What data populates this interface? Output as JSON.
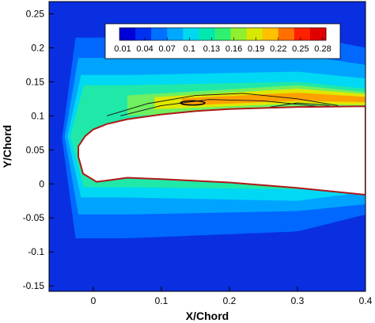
{
  "chart_data": {
    "type": "heatmap",
    "title": "",
    "xlabel": "X/Chord",
    "ylabel": "Y/Chord",
    "xlim": [
      -0.065,
      0.4
    ],
    "ylim": [
      -0.158,
      0.268
    ],
    "x_ticks": [
      {
        "value": 0,
        "label": "0"
      },
      {
        "value": 0.1,
        "label": "0.1"
      },
      {
        "value": 0.2,
        "label": "0.2"
      },
      {
        "value": 0.3,
        "label": "0.3"
      },
      {
        "value": 0.4,
        "label": "0.4"
      }
    ],
    "y_ticks": [
      {
        "value": 0.25,
        "label": "0.25"
      },
      {
        "value": 0.2,
        "label": "0.2"
      },
      {
        "value": 0.15,
        "label": "0.15"
      },
      {
        "value": 0.1,
        "label": "0.1"
      },
      {
        "value": 0.05,
        "label": "0.05"
      },
      {
        "value": 0,
        "label": "0"
      },
      {
        "value": -0.05,
        "label": "-0.05"
      },
      {
        "value": -0.1,
        "label": "-0.1"
      },
      {
        "value": -0.15,
        "label": "-0.15"
      }
    ],
    "grid": false,
    "legend": "colorbar top-center inside plot",
    "colorbar": {
      "min": 0.01,
      "max": 0.28,
      "levels": [
        0.01,
        0.04,
        0.07,
        0.1,
        0.13,
        0.16,
        0.19,
        0.22,
        0.25,
        0.28
      ],
      "labels": [
        "0.01",
        "0.04",
        "0.07",
        "0.1",
        "0.13",
        "0.16",
        "0.19",
        "0.22",
        "0.25",
        "0.28"
      ],
      "colors": [
        "#0000d8",
        "#0030f0",
        "#0070ff",
        "#00a8ff",
        "#00d8f0",
        "#00e8b0",
        "#30f070",
        "#90f030",
        "#d8e800",
        "#ffc000",
        "#ff7000",
        "#ff2000",
        "#e00000"
      ]
    },
    "field_bands": [
      {
        "level": 0.01,
        "color": "#0a2fe0",
        "y_lower": [
          -0.158,
          -0.158,
          -0.158
        ],
        "y_upper": [
          0.268,
          0.268,
          0.268
        ]
      },
      {
        "level": 0.04,
        "color": "#0068ff",
        "y_lower": [
          -0.08,
          -0.07,
          -0.045
        ],
        "y_upper": [
          0.215,
          0.22,
          0.2
        ]
      },
      {
        "level": 0.07,
        "color": "#00a4ff",
        "y_lower": [
          -0.045,
          -0.04,
          -0.03
        ],
        "y_upper": [
          0.185,
          0.19,
          0.175
        ]
      },
      {
        "level": 0.1,
        "color": "#00d8f4",
        "y_lower": [
          -0.02,
          -0.025,
          -0.012
        ],
        "y_upper": [
          0.16,
          0.165,
          0.155
        ]
      },
      {
        "level": 0.13,
        "color": "#20e8a8",
        "y_lower": [
          -0.005,
          -0.008,
          0.005
        ],
        "y_upper": [
          0.145,
          0.15,
          0.14
        ]
      },
      {
        "level": 0.16,
        "color": "#70f060",
        "y_lower": [
          0.1,
          0.11,
          0.11
        ],
        "y_upper": [
          0.13,
          0.145,
          0.135
        ]
      },
      {
        "level": 0.22,
        "color": "#e0e800",
        "y_lower": [
          0.108,
          0.118,
          0.116
        ],
        "y_upper": [
          0.125,
          0.14,
          0.132
        ]
      },
      {
        "level": 0.25,
        "color": "#ffa000",
        "y_lower": [
          0.112,
          0.122,
          0.12
        ],
        "y_upper": [
          0.122,
          0.134,
          0.128
        ]
      }
    ],
    "field_band_x": [
      0.05,
      0.3,
      0.4
    ],
    "airfoil_upper": [
      {
        "x": -0.022,
        "y": 0.055
      },
      {
        "x": -0.012,
        "y": 0.07
      },
      {
        "x": 0.0,
        "y": 0.08
      },
      {
        "x": 0.02,
        "y": 0.088
      },
      {
        "x": 0.05,
        "y": 0.095
      },
      {
        "x": 0.1,
        "y": 0.102
      },
      {
        "x": 0.15,
        "y": 0.107
      },
      {
        "x": 0.2,
        "y": 0.11
      },
      {
        "x": 0.3,
        "y": 0.113
      },
      {
        "x": 0.4,
        "y": 0.114
      }
    ],
    "airfoil_lower": [
      {
        "x": 0.4,
        "y": -0.016
      },
      {
        "x": 0.3,
        "y": -0.006
      },
      {
        "x": 0.2,
        "y": 0.002
      },
      {
        "x": 0.1,
        "y": 0.007
      },
      {
        "x": 0.05,
        "y": 0.009
      },
      {
        "x": 0.02,
        "y": 0.005
      },
      {
        "x": 0.005,
        "y": 0.003
      },
      {
        "x": -0.015,
        "y": 0.015
      },
      {
        "x": -0.022,
        "y": 0.04
      }
    ],
    "streamlines": [
      [
        {
          "x": 0.02,
          "y": 0.1
        },
        {
          "x": 0.08,
          "y": 0.118
        },
        {
          "x": 0.15,
          "y": 0.13
        },
        {
          "x": 0.22,
          "y": 0.133
        },
        {
          "x": 0.3,
          "y": 0.125
        },
        {
          "x": 0.36,
          "y": 0.115
        }
      ],
      [
        {
          "x": 0.04,
          "y": 0.1
        },
        {
          "x": 0.1,
          "y": 0.115
        },
        {
          "x": 0.17,
          "y": 0.124
        },
        {
          "x": 0.25,
          "y": 0.122
        },
        {
          "x": 0.33,
          "y": 0.114
        }
      ],
      [
        {
          "x": 0.26,
          "y": 0.113
        },
        {
          "x": 0.3,
          "y": 0.119
        },
        {
          "x": 0.34,
          "y": 0.116
        },
        {
          "x": 0.36,
          "y": 0.112
        }
      ]
    ],
    "vortex": {
      "x": 0.146,
      "y": 0.119,
      "rx": 0.018,
      "ry": 0.003
    }
  }
}
